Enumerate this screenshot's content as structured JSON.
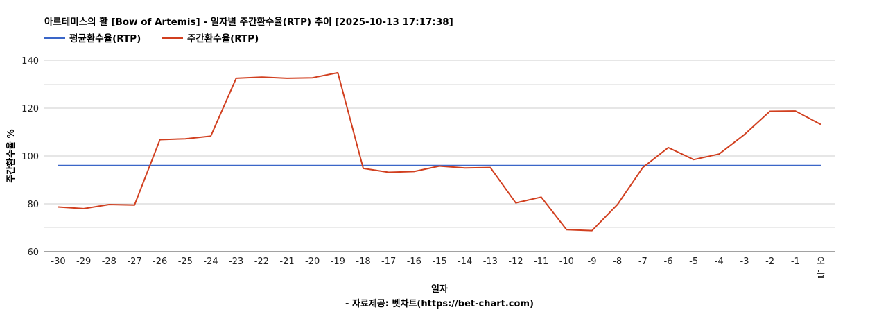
{
  "chart_data": {
    "type": "line",
    "title": "아르테미스의 활 [Bow of Artemis] - 일자별 주간환수율(RTP) 추이 [2025-10-13 17:17:38]",
    "xlabel": "일자",
    "ylabel": "주간환수율 %",
    "source": "- 자료제공: 벳차트(https://bet-chart.com)",
    "categories": [
      "-30",
      "-29",
      "-28",
      "-27",
      "-26",
      "-25",
      "-24",
      "-23",
      "-22",
      "-21",
      "-20",
      "-19",
      "-18",
      "-17",
      "-16",
      "-15",
      "-14",
      "-13",
      "-12",
      "-11",
      "-10",
      "-9",
      "-8",
      "-7",
      "-6",
      "-5",
      "-4",
      "-3",
      "-2",
      "-1",
      "오늘"
    ],
    "ylim": [
      60,
      140
    ],
    "yticks": [
      60,
      80,
      100,
      120,
      140
    ],
    "grid": true,
    "legend_position": "top-left",
    "series": [
      {
        "name": "평균환수율(RTP)",
        "color": "#3a66c8",
        "values": [
          96.0,
          96.0,
          96.0,
          96.0,
          96.0,
          96.0,
          96.0,
          96.0,
          96.0,
          96.0,
          96.0,
          96.0,
          96.0,
          96.0,
          96.0,
          96.0,
          96.0,
          96.0,
          96.0,
          96.0,
          96.0,
          96.0,
          96.0,
          96.0,
          96.0,
          96.0,
          96.0,
          96.0,
          96.0,
          96.0,
          96.0
        ]
      },
      {
        "name": "주간환수율(RTP)",
        "color": "#d13f1f",
        "values": [
          78.7,
          78.0,
          79.7,
          79.5,
          106.8,
          107.2,
          108.3,
          132.5,
          133.0,
          132.5,
          132.7,
          134.8,
          94.8,
          93.2,
          93.5,
          95.8,
          95.0,
          95.2,
          80.4,
          82.8,
          69.2,
          68.8,
          79.7,
          95.2,
          103.5,
          98.5,
          100.8,
          109.0,
          118.7,
          118.8,
          113.2
        ]
      }
    ]
  }
}
